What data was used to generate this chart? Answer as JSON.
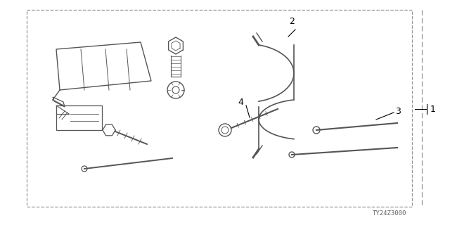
{
  "bg_color": "#ffffff",
  "line_color": "#555555",
  "border_color": "#999999",
  "part_number": "TY24Z3000",
  "label_1": "1",
  "label_2": "2",
  "label_3": "3",
  "label_4": "4",
  "fig_w": 6.4,
  "fig_h": 3.2,
  "dpi": 100
}
